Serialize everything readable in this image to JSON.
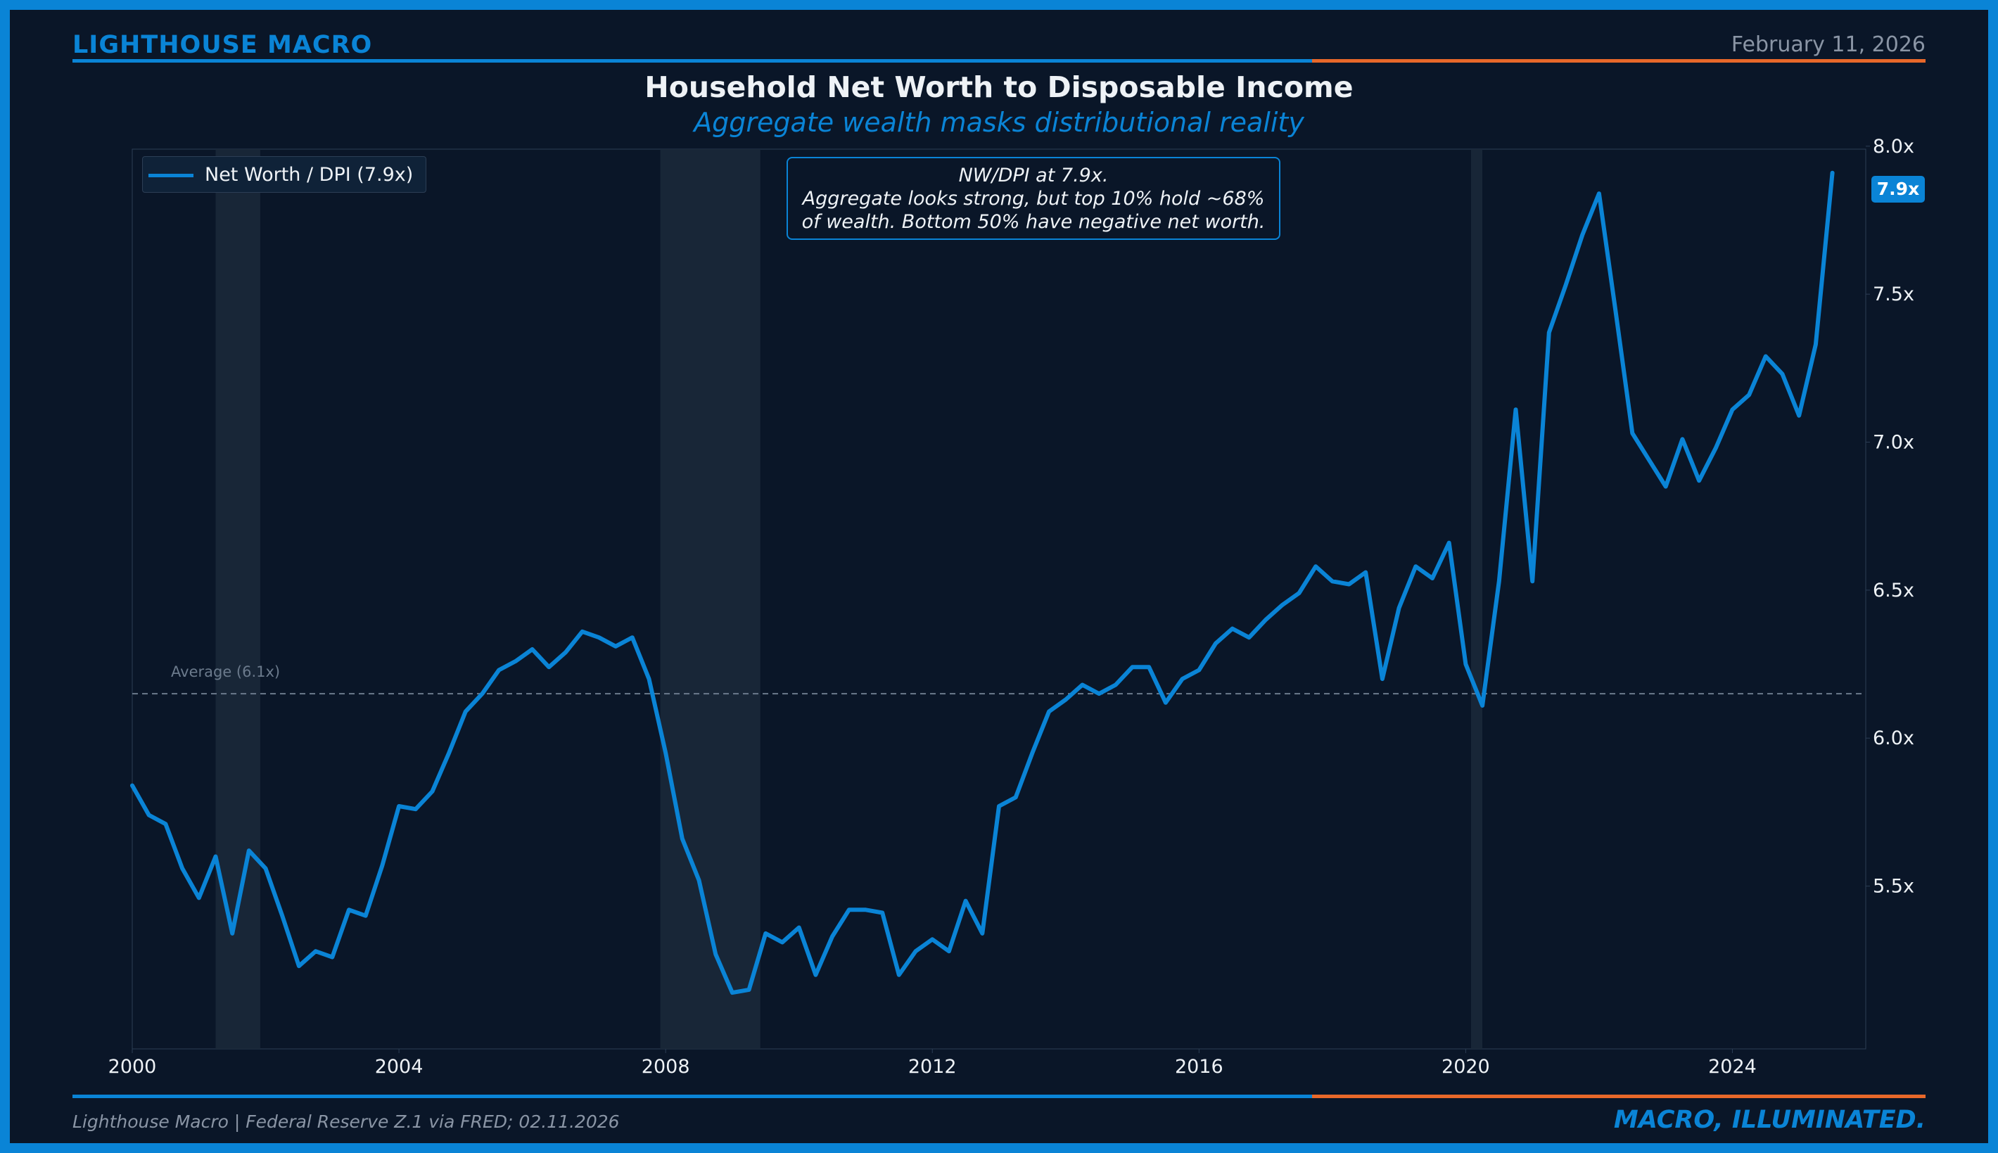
{
  "header": {
    "brand": "LIGHTHOUSE MACRO",
    "date": "February 11, 2026",
    "title": "Household Net Worth to Disposable Income",
    "subtitle": "Aggregate wealth masks distributional reality"
  },
  "footer": {
    "source": "Lighthouse Macro | Federal Reserve Z.1 via FRED; 02.11.2026",
    "tagline": "MACRO, ILLUMINATED."
  },
  "colors": {
    "background": "#0a1628",
    "accent": "#0a84d6",
    "accent2": "#e8682a",
    "recession": "#1a2838",
    "grid": "#2c3e55",
    "text": "#eef2f6",
    "muted": "#8a95a5"
  },
  "annotation": {
    "line1": "NW/DPI at 7.9x.",
    "line2": "Aggregate looks strong, but top 10% hold ~68%",
    "line3": "of wealth. Bottom 50% have negative net worth."
  },
  "chart_data": {
    "type": "line",
    "title": "Household Net Worth to Disposable Income",
    "subtitle": "Aggregate wealth masks distributional reality",
    "xlabel": "",
    "ylabel": "",
    "xlim": [
      2000.0,
      2026.0
    ],
    "ylim": [
      5.0,
      8.0
    ],
    "x_ticks": [
      2000,
      2004,
      2008,
      2012,
      2016,
      2020,
      2024
    ],
    "x_tick_labels": [
      "2000",
      "2004",
      "2008",
      "2012",
      "2016",
      "2020",
      "2024"
    ],
    "y_ticks": [
      5.5,
      6.0,
      6.5,
      7.0,
      7.5,
      8.0
    ],
    "y_tick_labels": [
      "5.5x",
      "6.0x",
      "6.5x",
      "7.0x",
      "7.5x",
      "8.0x"
    ],
    "legend": {
      "position": "top-left",
      "entries": [
        "Net Worth / DPI (7.9x)"
      ]
    },
    "last_value_label": "7.9x",
    "reference_line": {
      "value": 6.15,
      "label": "Average (6.1x)"
    },
    "recessions": [
      {
        "start": 2001.25,
        "end": 2001.92
      },
      {
        "start": 2007.92,
        "end": 2009.42
      },
      {
        "start": 2020.08,
        "end": 2020.25
      }
    ],
    "series": [
      {
        "name": "Net Worth / DPI (7.9x)",
        "x": [
          2000.0,
          2000.25,
          2000.5,
          2000.75,
          2001.0,
          2001.25,
          2001.5,
          2001.75,
          2002.0,
          2002.25,
          2002.5,
          2002.75,
          2003.0,
          2003.25,
          2003.5,
          2003.75,
          2004.0,
          2004.25,
          2004.5,
          2004.75,
          2005.0,
          2005.25,
          2005.5,
          2005.75,
          2006.0,
          2006.25,
          2006.5,
          2006.75,
          2007.0,
          2007.25,
          2007.5,
          2007.75,
          2008.0,
          2008.25,
          2008.5,
          2008.75,
          2009.0,
          2009.25,
          2009.5,
          2009.75,
          2010.0,
          2010.25,
          2010.5,
          2010.75,
          2011.0,
          2011.25,
          2011.5,
          2011.75,
          2012.0,
          2012.25,
          2012.5,
          2012.75,
          2013.0,
          2013.25,
          2013.5,
          2013.75,
          2014.0,
          2014.25,
          2014.5,
          2014.75,
          2015.0,
          2015.25,
          2015.5,
          2015.75,
          2016.0,
          2016.25,
          2016.5,
          2016.75,
          2017.0,
          2017.25,
          2017.5,
          2017.75,
          2018.0,
          2018.25,
          2018.5,
          2018.75,
          2019.0,
          2019.25,
          2019.5,
          2019.75,
          2020.0,
          2020.25,
          2020.5,
          2020.75,
          2021.0,
          2021.25,
          2021.5,
          2021.75,
          2022.0,
          2022.25,
          2022.5,
          2022.75,
          2023.0,
          2023.25,
          2023.5,
          2023.75,
          2024.0,
          2024.25,
          2024.5,
          2024.75,
          2025.0,
          2025.25,
          2025.5
        ],
        "values": [
          5.84,
          5.74,
          5.71,
          5.56,
          5.46,
          5.6,
          5.34,
          5.62,
          5.56,
          5.4,
          5.23,
          5.28,
          5.26,
          5.42,
          5.4,
          5.57,
          5.77,
          5.76,
          5.82,
          5.95,
          6.09,
          6.15,
          6.23,
          6.26,
          6.3,
          6.24,
          6.29,
          6.36,
          6.34,
          6.31,
          6.34,
          6.2,
          5.95,
          5.66,
          5.52,
          5.27,
          5.14,
          5.15,
          5.34,
          5.31,
          5.36,
          5.2,
          5.33,
          5.42,
          5.42,
          5.41,
          5.2,
          5.28,
          5.32,
          5.28,
          5.45,
          5.34,
          5.77,
          5.8,
          5.95,
          6.09,
          6.13,
          6.18,
          6.15,
          6.18,
          6.24,
          6.24,
          6.12,
          6.2,
          6.23,
          6.32,
          6.37,
          6.34,
          6.4,
          6.45,
          6.49,
          6.58,
          6.53,
          6.52,
          6.56,
          6.2,
          6.44,
          6.58,
          6.54,
          6.66,
          6.25,
          6.11,
          6.53,
          7.11,
          6.53,
          7.37,
          7.53,
          7.7,
          7.84,
          7.44,
          7.03,
          6.94,
          6.85,
          7.01,
          6.87,
          6.98,
          7.11,
          7.16,
          7.29,
          7.23,
          7.09,
          7.33,
          7.91
        ]
      }
    ]
  }
}
